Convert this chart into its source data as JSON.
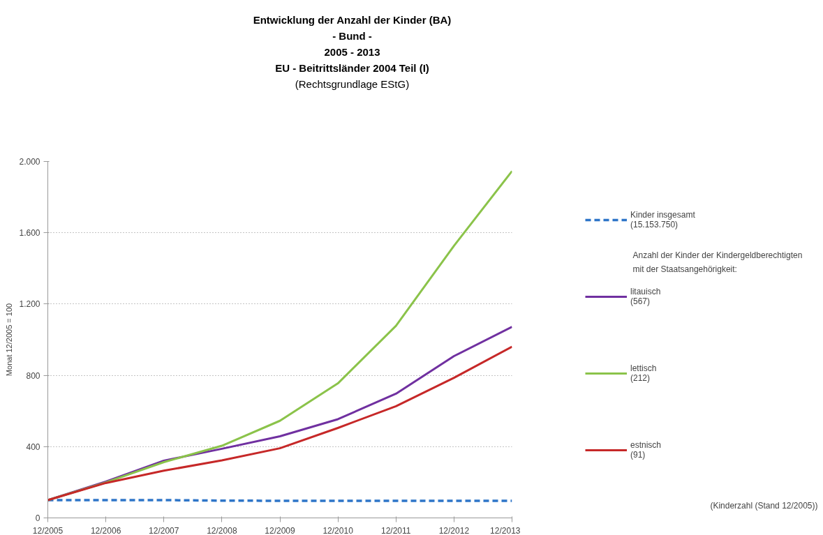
{
  "chart_data": {
    "type": "line",
    "title": "Entwicklung der Anzahl der Kinder (BA)\n- Bund -\n2005 - 2013\nEU - Beitrittsländer 2004 Teil (I)",
    "subtitle": "(Rechtsgrundlage EStG)",
    "ylabel": "Monat 12/2005 = 100",
    "categories": [
      "12/2005",
      "12/2006",
      "12/2007",
      "12/2008",
      "12/2009",
      "12/2010",
      "12/2011",
      "12/2012",
      "12/2013"
    ],
    "series": [
      {
        "name": "Kinder insgesamt\n(15.153.750)",
        "color": "#2e75c8",
        "line_style": "dashed",
        "values": [
          100,
          100,
          100,
          97,
          96,
          96,
          96,
          96,
          96
        ]
      },
      {
        "name": "litauisch\n(567)",
        "color": "#7030a0",
        "values": [
          100,
          204,
          321,
          388,
          458,
          554,
          697,
          908,
          1072
        ]
      },
      {
        "name": "lettisch\n(212)",
        "color": "#8bc34a",
        "values": [
          100,
          199,
          313,
          405,
          545,
          755,
          1078,
          1527,
          1946
        ]
      },
      {
        "name": "estnisch\n(91)",
        "color": "#c62828",
        "values": [
          100,
          196,
          265,
          323,
          391,
          505,
          627,
          786,
          961
        ]
      }
    ],
    "ylim": [
      0,
      2000
    ],
    "yticks": [
      0,
      400,
      800,
      {
        "value": 1200,
        "label": "1.200"
      },
      {
        "value": 1600,
        "label": "1.600"
      },
      {
        "value": 2000,
        "label": "2.000"
      }
    ],
    "grid": "y",
    "legend": "right",
    "line_style": "solid",
    "marker": "none",
    "annotations": [
      "Anzahl der Kinder der Kindergeldberechtigten\nmit der Staatsangehörigkeit:",
      "(Kinderzahl (Stand 12/2005))"
    ]
  }
}
